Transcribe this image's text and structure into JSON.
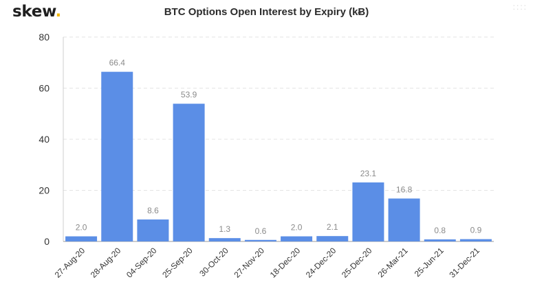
{
  "brand": {
    "name": "skew",
    "dot": ".",
    "dot_color": "#f2b705"
  },
  "corner_decoration": "::::",
  "chart_data": {
    "type": "bar",
    "title": "BTC Options Open Interest by Expiry (kɃ)",
    "xlabel": "",
    "ylabel": "",
    "categories": [
      "27-Aug-20",
      "28-Aug-20",
      "04-Sep-20",
      "25-Sep-20",
      "30-Oct-20",
      "27-Nov-20",
      "18-Dec-20",
      "24-Dec-20",
      "25-Dec-20",
      "26-Mar-21",
      "25-Jun-21",
      "31-Dec-21"
    ],
    "values": [
      2.0,
      66.4,
      8.6,
      53.9,
      1.3,
      0.6,
      2.0,
      2.1,
      23.1,
      16.8,
      0.8,
      0.9
    ],
    "value_labels": [
      "2.0",
      "66.4",
      "8.6",
      "53.9",
      "1.3",
      "0.6",
      "2.0",
      "2.1",
      "23.1",
      "16.8",
      "0.8",
      "0.9"
    ],
    "ylim": [
      0,
      80
    ],
    "yticks": [
      0,
      20,
      40,
      60,
      80
    ],
    "grid": true,
    "legend": "none",
    "bar_color": "#5b8ee6"
  }
}
